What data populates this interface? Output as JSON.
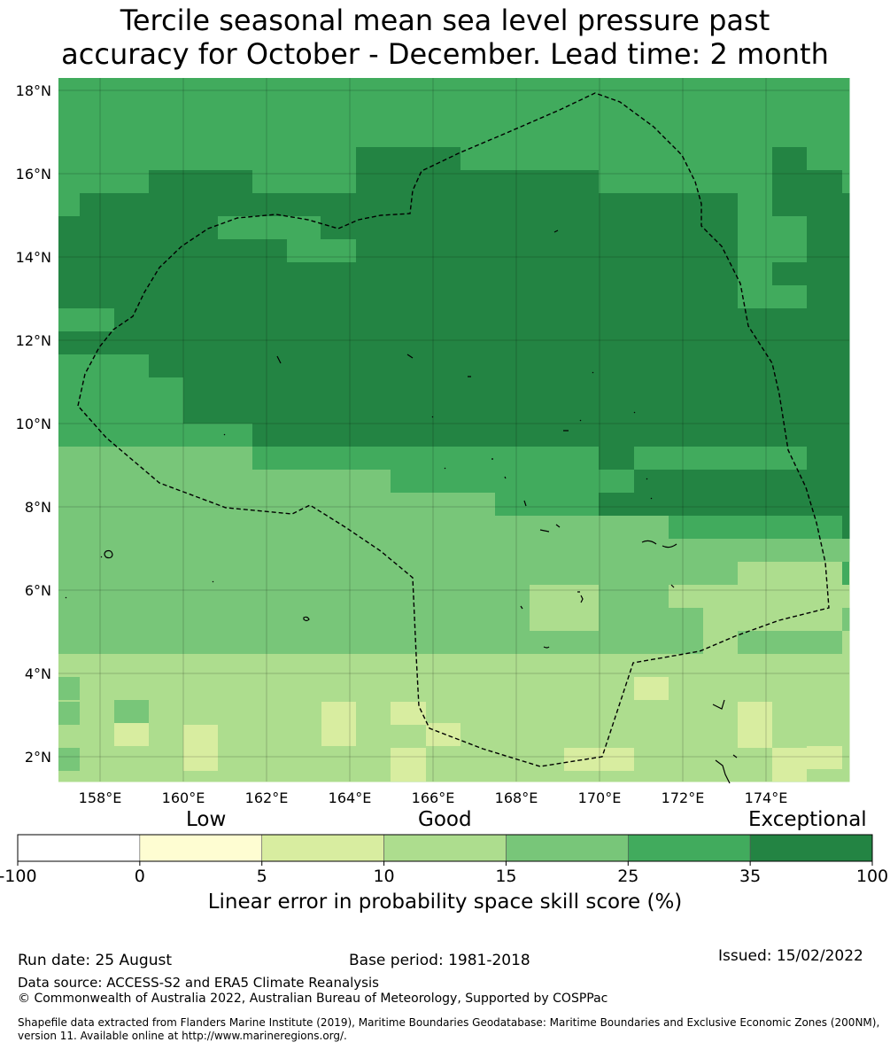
{
  "title_line1": "Tercile seasonal mean sea level pressure past",
  "title_line2": "accuracy for October - December. Lead time: 2 month",
  "map": {
    "lon_range": [
      157,
      176
    ],
    "lat_range": [
      1.4,
      18.3
    ],
    "x_ticks": [
      {
        "value": 158,
        "label": "158°E"
      },
      {
        "value": 160,
        "label": "160°E"
      },
      {
        "value": 162,
        "label": "162°E"
      },
      {
        "value": 164,
        "label": "164°E"
      },
      {
        "value": 166,
        "label": "166°E"
      },
      {
        "value": 168,
        "label": "168°E"
      },
      {
        "value": 170,
        "label": "170°E"
      },
      {
        "value": 172,
        "label": "172°E"
      },
      {
        "value": 174,
        "label": "174°E"
      }
    ],
    "y_ticks": [
      {
        "value": 18,
        "label": "18°N"
      },
      {
        "value": 16,
        "label": "16°N"
      },
      {
        "value": 14,
        "label": "14°N"
      },
      {
        "value": 12,
        "label": "12°N"
      },
      {
        "value": 10,
        "label": "10°N"
      },
      {
        "value": 8,
        "label": "8°N"
      },
      {
        "value": 6,
        "label": "6°N"
      },
      {
        "value": 4,
        "label": "4°N"
      },
      {
        "value": 2,
        "label": "2°N"
      }
    ],
    "boundary_color": "#000000"
  },
  "colorbar": {
    "category_labels": [
      "Low",
      "Good",
      "Exceptional"
    ],
    "tick_labels": [
      "-100",
      "0",
      "5",
      "10",
      "15",
      "25",
      "35",
      "100"
    ],
    "colors": [
      "#ffffff",
      "#fefdd2",
      "#d8eda0",
      "#addd8e",
      "#78c679",
      "#41ab5d",
      "#238443"
    ],
    "label": "Linear error in probability space skill score (%)"
  },
  "footer": {
    "run_date": "Run date: 25 August",
    "base_period": "Base period: 1981-2018",
    "issued": "Issued: 15/02/2022",
    "data_source": "Data source: ACCESS-S2 and ERA5 Climate Reanalysis",
    "copyright": "© Commonwealth of Australia 2022, Australian Bureau of Meteorology, Supported by COSPPac",
    "shapefile_line1": "Shapefile data extracted from Flanders Marine Institute (2019), Maritime Boundaries Geodatabase: Maritime Boundaries and Exclusive Economic Zones (200NM),",
    "shapefile_line2": "version 11. Available online at http://www.marineregions.org/."
  }
}
